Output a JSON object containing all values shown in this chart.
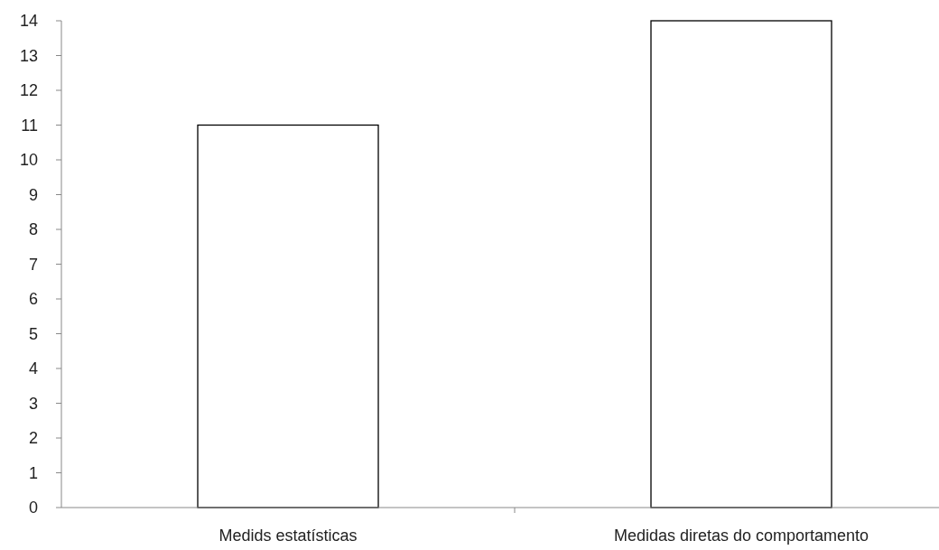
{
  "chart_data": {
    "type": "bar",
    "categories": [
      "Medids estatísticas",
      "Medidas diretas do comportamento"
    ],
    "values": [
      11,
      14
    ],
    "color": "#ffffff",
    "ylim": [
      0,
      14
    ],
    "yticks": [
      0,
      1,
      2,
      3,
      4,
      5,
      6,
      7,
      8,
      9,
      10,
      11,
      12,
      13,
      14
    ],
    "grid": false
  }
}
